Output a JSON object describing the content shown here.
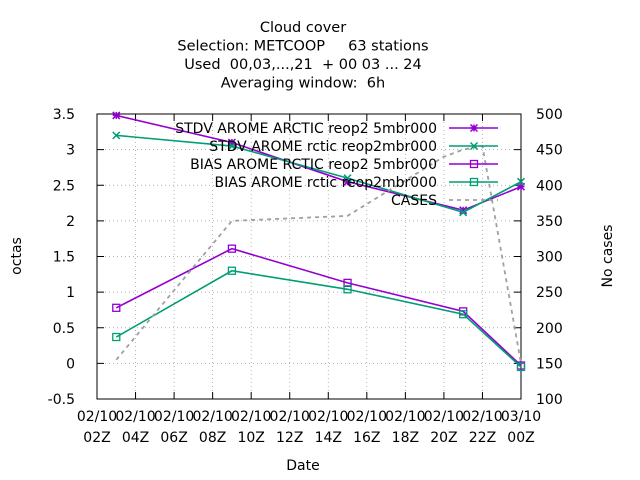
{
  "chart_data": {
    "type": "line",
    "title_lines": [
      "Cloud cover",
      "Selection: METCOOP     63 stations",
      "Used  00,03,...,21  + 00 03 ... 24",
      "Averaging window:  6h"
    ],
    "xlabel": "Date",
    "ylabel": "octas",
    "y2label": "No cases",
    "ylim": [
      -0.5,
      3.5
    ],
    "y2lim": [
      100,
      500
    ],
    "yticks": [
      "-0.5",
      "0",
      "0.5",
      "1",
      "1.5",
      "2",
      "2.5",
      "3",
      "3.5"
    ],
    "y2ticks": [
      "100",
      "150",
      "200",
      "250",
      "300",
      "350",
      "400",
      "450",
      "500"
    ],
    "xticks": [
      {
        "top": "02/10",
        "bottom": "02Z"
      },
      {
        "top": "02/10",
        "bottom": "04Z"
      },
      {
        "top": "02/10",
        "bottom": "06Z"
      },
      {
        "top": "02/10",
        "bottom": "08Z"
      },
      {
        "top": "02/10",
        "bottom": "10Z"
      },
      {
        "top": "02/10",
        "bottom": "12Z"
      },
      {
        "top": "02/10",
        "bottom": "14Z"
      },
      {
        "top": "02/10",
        "bottom": "16Z"
      },
      {
        "top": "02/10",
        "bottom": "18Z"
      },
      {
        "top": "02/10",
        "bottom": "20Z"
      },
      {
        "top": "02/10",
        "bottom": "22Z"
      },
      {
        "top": "03/10",
        "bottom": "00Z"
      }
    ],
    "x_hours": [
      3,
      9,
      15,
      21,
      24
    ],
    "series": [
      {
        "name": "STDV AROME_ARCTIC_preop2_v5mbr000",
        "legend_label": "STDV AROME ARCTIC reop2 5mbr000",
        "axis": "y1",
        "marker": "star",
        "color": "#9400d3",
        "values": [
          3.48,
          3.1,
          2.55,
          2.15,
          2.48
        ]
      },
      {
        "name": "STDV AROME_Arctic_preop2mbr000",
        "legend_label": "STDV AROME rctic reop2mbr000",
        "axis": "y1",
        "marker": "x",
        "color": "#009e73",
        "values": [
          3.2,
          3.05,
          2.6,
          2.12,
          2.55
        ]
      },
      {
        "name": "BIAS AROME_ARCTIC_preop2_v5mbr000",
        "legend_label": "BIAS AROME RCTIC reop2 5mbr000",
        "axis": "y1",
        "marker": "open-square",
        "color": "#9400d3",
        "values": [
          0.78,
          1.61,
          1.13,
          0.73,
          -0.03
        ]
      },
      {
        "name": "BIAS AROME_Arctic_preop2mbr000",
        "legend_label": "BIAS AROME rctic reop2mbr000",
        "axis": "y1",
        "marker": "open-square",
        "color": "#009e73",
        "values": [
          0.37,
          1.3,
          1.04,
          0.69,
          -0.05
        ]
      },
      {
        "name": "CASES",
        "legend_label": "CASES",
        "axis": "y2",
        "marker": "none",
        "dash": true,
        "color": "#a0a0a0",
        "x_hours": [
          3,
          9,
          15,
          20,
          21,
          22,
          24
        ],
        "values": [
          155,
          350,
          357,
          440,
          450,
          455,
          150
        ]
      }
    ],
    "grid": true,
    "legend_position": "top-right"
  }
}
